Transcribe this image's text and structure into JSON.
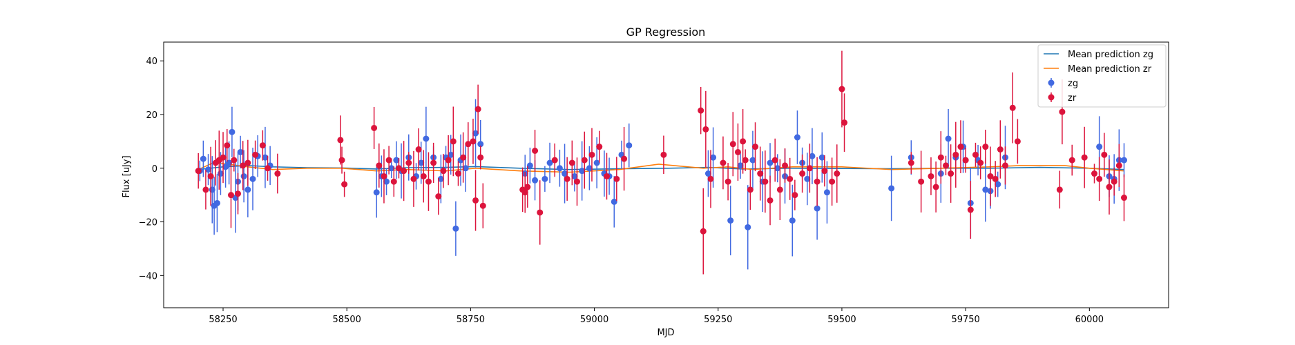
{
  "chart_data": {
    "type": "scatter",
    "title": "GP Regression",
    "xlabel": "MJD",
    "ylabel": "Flux [uJy]",
    "xlim": [
      58130,
      60160
    ],
    "ylim": [
      -52,
      47
    ],
    "xticks": [
      58250,
      58500,
      58750,
      59000,
      59250,
      59500,
      59750,
      60000
    ],
    "yticks": [
      -40,
      -20,
      0,
      20,
      40
    ],
    "grid": false,
    "legend_position": "top-right",
    "legend": [
      {
        "label": "Mean prediction zg",
        "kind": "line",
        "color": "#1f77b4"
      },
      {
        "label": "Mean prediction zr",
        "kind": "line",
        "color": "#ff7f0e"
      },
      {
        "label": "zg",
        "kind": "errorbar",
        "color": "#4169e1"
      },
      {
        "label": "zr",
        "kind": "errorbar",
        "color": "#dc143c"
      }
    ],
    "series": [
      {
        "name": "Mean prediction zg",
        "kind": "line",
        "color": "#1f77b4",
        "x": [
          58200,
          58250,
          58300,
          58350,
          58420,
          58490,
          58560,
          58620,
          58700,
          58760,
          58850,
          58950,
          59050,
          59150,
          59230,
          59300,
          59400,
          59500,
          59600,
          59700,
          59800,
          59900,
          60000,
          60070
        ],
        "y": [
          -0.5,
          0.5,
          1.0,
          0.5,
          0.2,
          0.1,
          -0.3,
          0.2,
          0.3,
          0.6,
          0.0,
          -0.5,
          -0.2,
          0.0,
          0.3,
          -0.3,
          0.0,
          -0.1,
          -0.2,
          0.0,
          0.0,
          0.3,
          0.0,
          -0.5
        ]
      },
      {
        "name": "Mean prediction zr",
        "kind": "line",
        "color": "#ff7f0e",
        "x": [
          58200,
          58230,
          58260,
          58300,
          58350,
          58420,
          58490,
          58560,
          58620,
          58700,
          58760,
          58850,
          58950,
          59050,
          59130,
          59220,
          59270,
          59320,
          59400,
          59500,
          59600,
          59700,
          59800,
          59860,
          59950,
          60000,
          60070
        ],
        "y": [
          -0.5,
          2.0,
          1.5,
          0.5,
          -0.5,
          0.0,
          0.0,
          -1.0,
          -0.5,
          -1.0,
          0.0,
          -1.0,
          -1.5,
          -0.5,
          1.5,
          0.0,
          0.5,
          -0.5,
          0.5,
          0.5,
          -0.5,
          0.0,
          0.5,
          1.0,
          1.0,
          0.0,
          -1.0
        ]
      },
      {
        "name": "zg",
        "kind": "errorbar",
        "color": "#4169e1",
        "x": [
          58203,
          58210,
          58220,
          58228,
          58232,
          58238,
          58245,
          58255,
          58262,
          58268,
          58275,
          58280,
          58285,
          58292,
          58300,
          58310,
          58320,
          58335,
          58345,
          58560,
          58570,
          58580,
          58590,
          58600,
          58610,
          58625,
          58640,
          58650,
          58660,
          58675,
          58690,
          58700,
          58710,
          58720,
          58730,
          58740,
          58760,
          58770,
          58860,
          58870,
          58880,
          58900,
          58910,
          58930,
          58940,
          58960,
          58975,
          58990,
          59005,
          59020,
          59030,
          59040,
          59055,
          59070,
          59230,
          59240,
          59275,
          59295,
          59310,
          59320,
          59340,
          59355,
          59370,
          59385,
          59400,
          59410,
          59420,
          59430,
          59440,
          59450,
          59460,
          59470,
          59600,
          59640,
          59700,
          59715,
          59730,
          59745,
          59760,
          59775,
          59790,
          59800,
          59815,
          59830,
          60020,
          60040,
          60050,
          60060,
          60070
        ],
        "y": [
          -1,
          3.5,
          -0.5,
          -8,
          -14,
          -13,
          -2,
          0.5,
          2,
          13.5,
          -11,
          -5,
          6,
          -3,
          -8,
          -4,
          4.5,
          4,
          1,
          -9,
          -3,
          -5,
          0,
          3,
          -1,
          4,
          -3,
          2,
          11,
          4,
          -4,
          4,
          5,
          -22.5,
          3,
          0,
          13,
          9,
          -2,
          1,
          -4.5,
          -4,
          2,
          0,
          -2,
          -3,
          -1,
          0,
          2,
          -2,
          -3,
          -12.5,
          5,
          8.5,
          -2,
          4,
          -19.5,
          1,
          -22,
          3,
          -5,
          2,
          0,
          -3,
          -19.5,
          11.5,
          2,
          -4,
          4.5,
          -15,
          4,
          -9,
          -7.5,
          4,
          -2,
          11,
          4,
          8,
          -13,
          3,
          -8,
          -8.5,
          -6,
          4,
          8,
          -3,
          -4,
          3,
          3
        ]
      },
      {
        "name": "zr",
        "kind": "errorbar",
        "color": "#dc143c",
        "x": [
          58200,
          58215,
          58225,
          58235,
          58242,
          58250,
          58258,
          58266,
          58272,
          58280,
          58290,
          58300,
          58315,
          58330,
          58340,
          58360,
          58487,
          58490,
          58495,
          58555,
          58565,
          58575,
          58585,
          58595,
          58605,
          58615,
          58625,
          58635,
          58645,
          58655,
          58665,
          58675,
          58685,
          58695,
          58705,
          58715,
          58725,
          58735,
          58745,
          58755,
          58760,
          58765,
          58770,
          58775,
          58855,
          58860,
          58865,
          58880,
          58890,
          58920,
          58945,
          58955,
          58965,
          58980,
          58995,
          59010,
          59025,
          59045,
          59060,
          59140,
          59215,
          59220,
          59225,
          59235,
          59260,
          59270,
          59280,
          59290,
          59300,
          59305,
          59315,
          59325,
          59335,
          59345,
          59355,
          59365,
          59375,
          59385,
          59395,
          59405,
          59420,
          59435,
          59450,
          59465,
          59480,
          59490,
          59500,
          59505,
          59640,
          59660,
          59680,
          59690,
          59700,
          59710,
          59720,
          59730,
          59740,
          59750,
          59760,
          59770,
          59780,
          59790,
          59800,
          59810,
          59820,
          59830,
          59845,
          59855,
          59940,
          59945,
          59965,
          59990,
          60010,
          60020,
          60030,
          60040,
          60050,
          60060,
          60070
        ],
        "y": [
          -1,
          -8,
          -3,
          2,
          3,
          4,
          8.5,
          -10,
          3,
          -9.5,
          1,
          2,
          5,
          8.5,
          0,
          -2,
          10.5,
          3,
          -6,
          15,
          1,
          -3,
          3,
          -5,
          0,
          -1,
          2,
          -4,
          7,
          -3,
          -5,
          2,
          -10.5,
          -1,
          3,
          10,
          -2,
          4,
          9,
          10,
          -12,
          22,
          4,
          -14,
          -8,
          -9,
          -7,
          6.5,
          -16.5,
          3,
          -4,
          2,
          -5,
          3,
          5,
          8,
          -3,
          -4,
          3.5,
          5,
          21.5,
          -23.5,
          14.5,
          -4,
          2,
          -5,
          9,
          6,
          10,
          3,
          -8,
          8,
          -2,
          -5,
          -12,
          3,
          -8,
          1,
          -4,
          -10,
          -2,
          0,
          -5,
          -1,
          -5,
          -2,
          29.5,
          17,
          2,
          -5,
          -3,
          -7,
          4,
          1,
          -2,
          5,
          8,
          3,
          -15.5,
          5,
          2,
          8,
          -3,
          -4,
          7,
          1,
          22.5,
          10,
          -8,
          21,
          3,
          4,
          -2,
          -4,
          5,
          -7,
          -5,
          1,
          -11
        ]
      }
    ]
  }
}
